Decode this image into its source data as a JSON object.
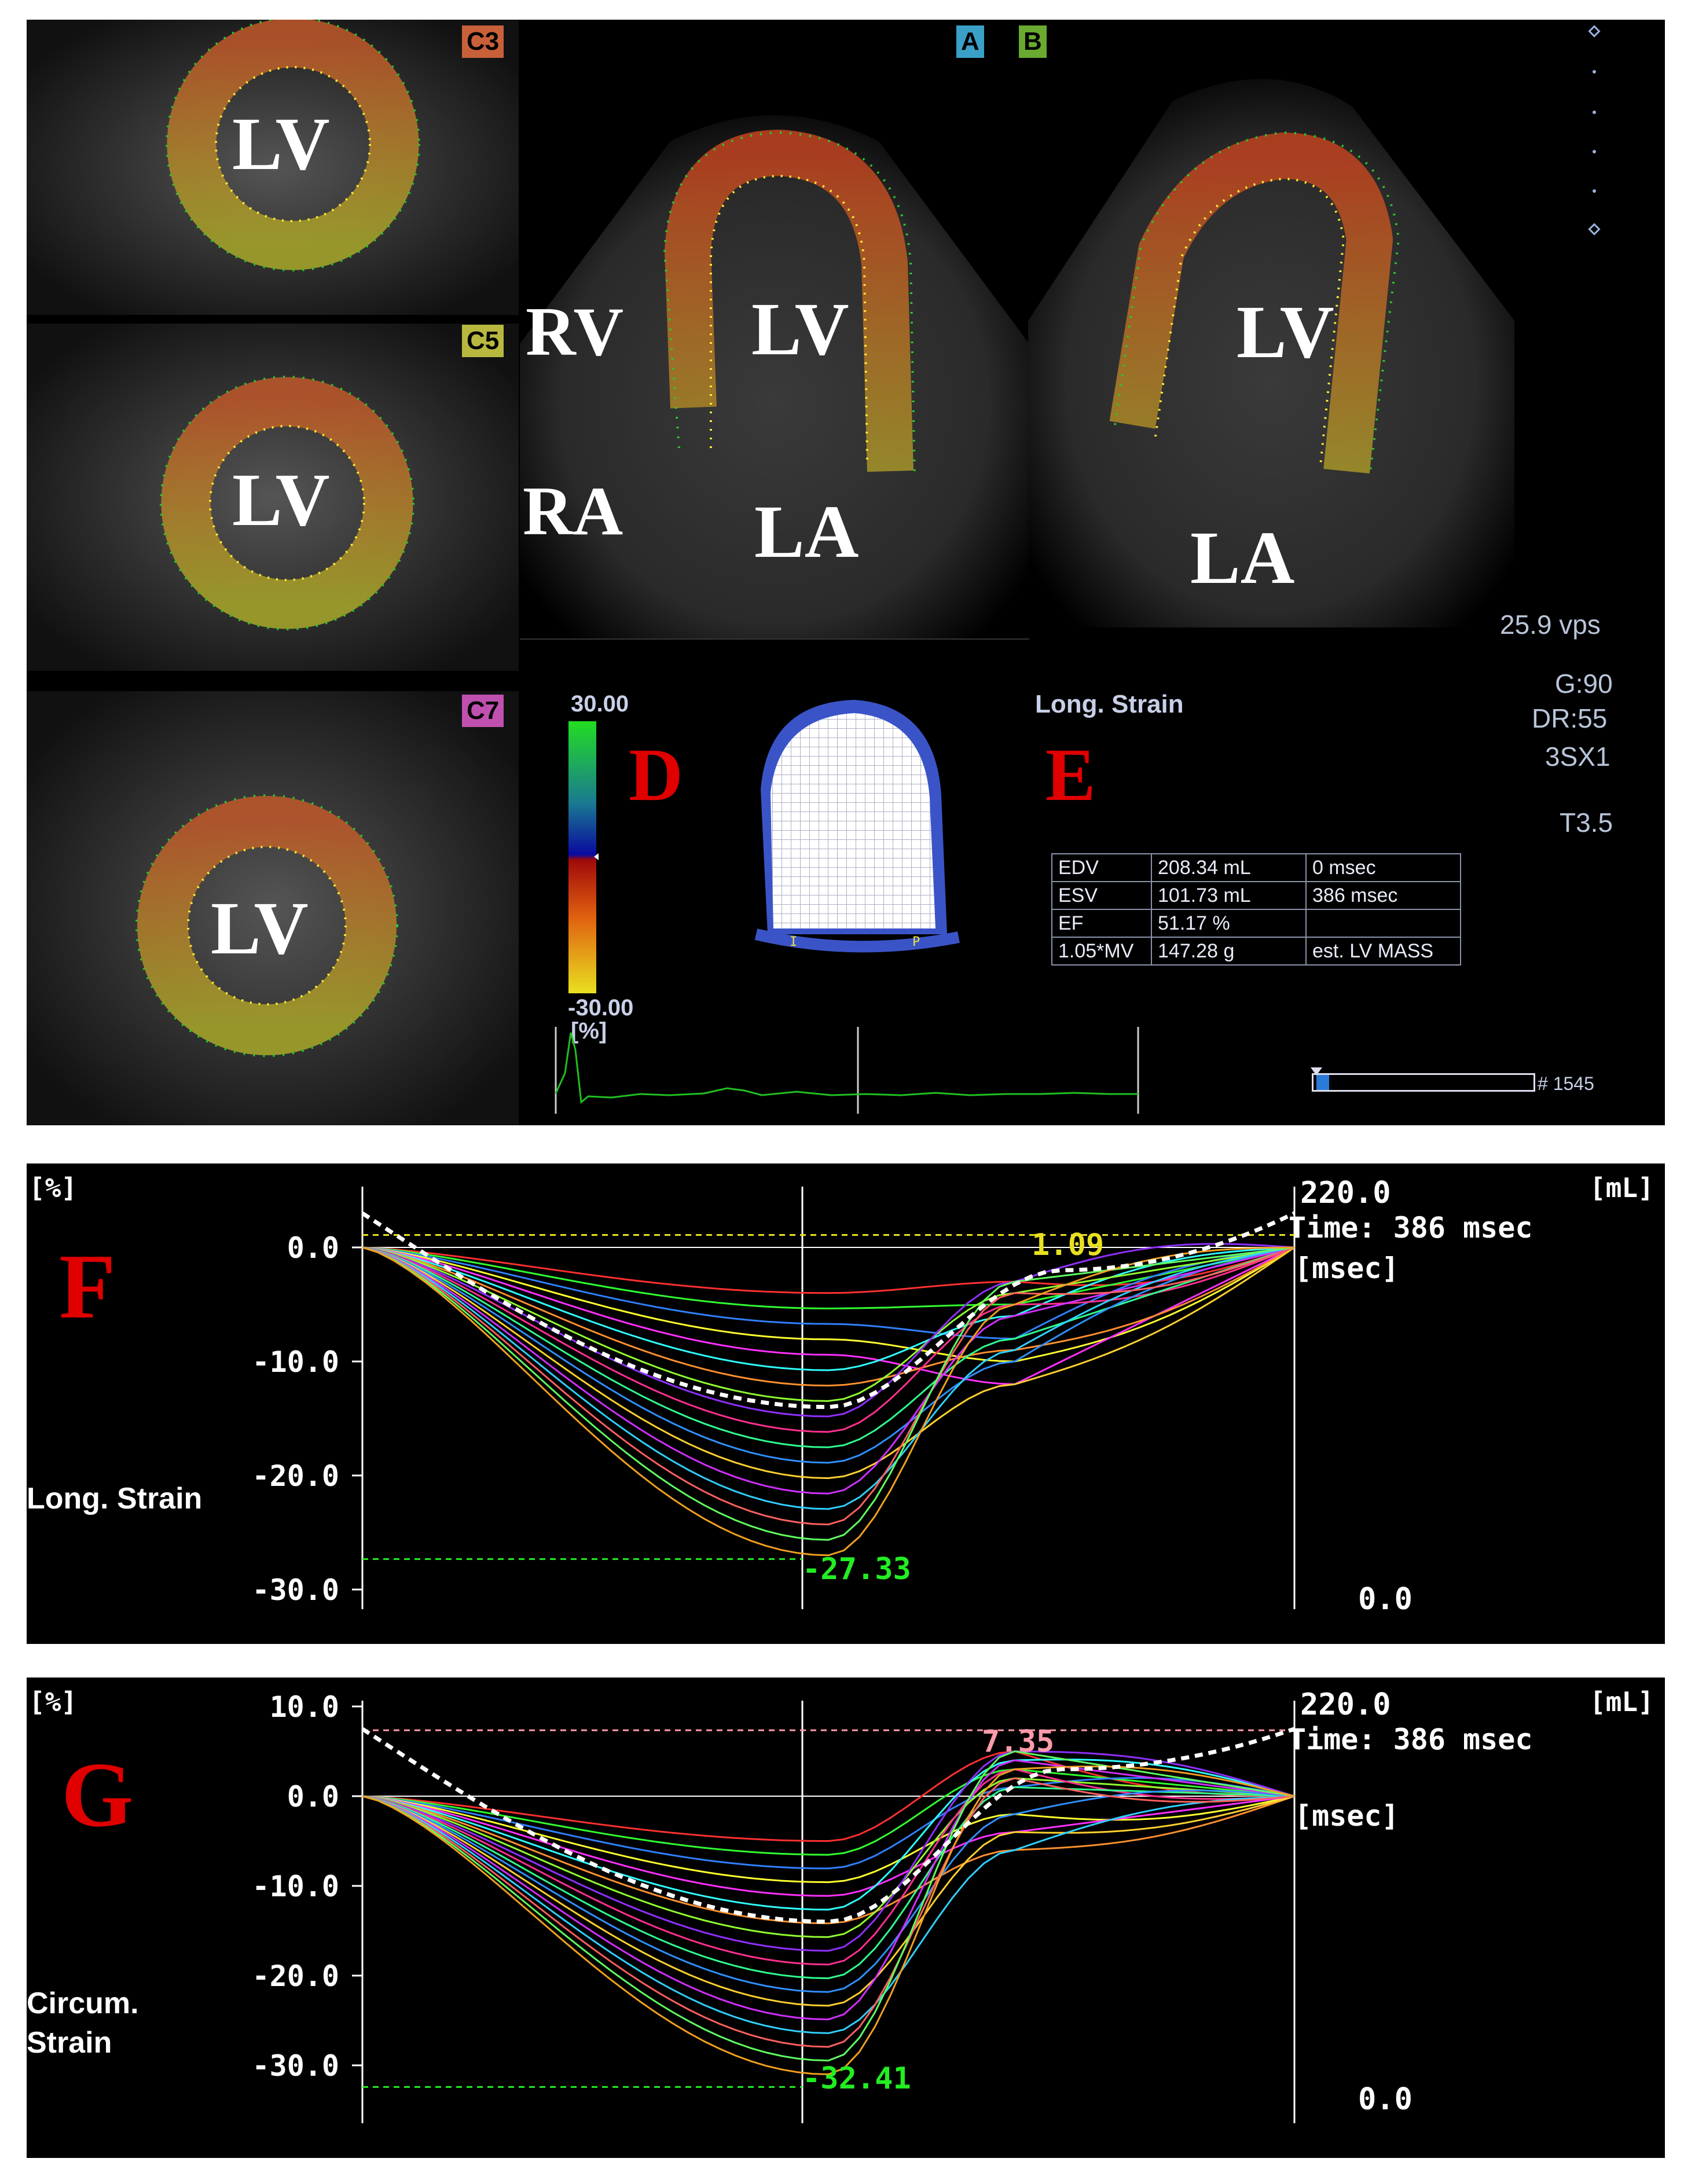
{
  "viewer": {
    "views": {
      "sax_1": {
        "badge": "C3",
        "label": "LV",
        "badge_color": "#c8603a"
      },
      "sax_2": {
        "badge": "C5",
        "label": "LV",
        "badge_color": "#b8b840"
      },
      "sax_3": {
        "badge": "C7",
        "label": "LV",
        "badge_color": "#c050b0"
      },
      "apical_a": {
        "badge": "A",
        "badge_color": "#3aa0c8",
        "labels": {
          "rv": "RV",
          "lv": "LV",
          "ra": "RA",
          "la": "LA"
        }
      },
      "apical_b": {
        "badge": "B",
        "badge_color": "#6aaa30",
        "labels": {
          "lv": "LV",
          "la": "LA"
        }
      }
    },
    "info": {
      "vps": "25.9 vps",
      "gain": "G:90",
      "dr": "DR:55",
      "probe": "3SX1",
      "t": "T3.5"
    },
    "colorbar": {
      "max": "30.00",
      "min": "-30.00",
      "unit": "[%]"
    },
    "panel_letters": {
      "d": "D",
      "e": "E"
    },
    "strain_title": "Long. Strain",
    "metrics": [
      [
        "EDV",
        "208.34 mL",
        "0 msec"
      ],
      [
        "ESV",
        "101.73 mL",
        "386 msec"
      ],
      [
        "EF",
        "51.17 %",
        ""
      ],
      [
        "1.05*MV",
        "147.28 g",
        "est. LV MASS"
      ]
    ],
    "frame_number": "# 1545",
    "mesh_markers": {
      "left": "I",
      "right": "P"
    }
  },
  "panel_f": {
    "letter": "F",
    "unit_left": "[%]",
    "unit_right": "[mL]",
    "y_ticks": [
      "0.0",
      "-10.0",
      "-20.0",
      "-30.0"
    ],
    "right_top": "220.0",
    "right_bottom": "0.0",
    "time_label": "Time: 386 msec",
    "msec_label": "[msec]",
    "series_label": "Long. Strain",
    "peak_value": "1.09",
    "min_value": "-27.33"
  },
  "panel_g": {
    "letter": "G",
    "unit_left": "[%]",
    "unit_right": "[mL]",
    "y_ticks": [
      "10.0",
      "0.0",
      "-10.0",
      "-20.0",
      "-30.0"
    ],
    "right_top": "220.0",
    "right_bottom": "0.0",
    "time_label": "Time: 386 msec",
    "msec_label": "[msec]",
    "series_label_1": "Circum.",
    "series_label_2": "Strain",
    "peak_value": "7.35",
    "min_value": "-32.41"
  },
  "chart_data": [
    {
      "type": "line",
      "ylabel": "[%]",
      "ylim": [
        -30,
        3
      ],
      "y_ticks": [
        0,
        -10,
        -20,
        -30
      ],
      "x_label": "[msec]",
      "x_marker_msec": 386,
      "series": [
        {
          "name": "Long. Strain",
          "min": -27.33,
          "max": 1.09
        }
      ]
    },
    {
      "type": "line",
      "ylabel": "[%]",
      "ylim": [
        -33,
        10
      ],
      "y_ticks": [
        10,
        0,
        -10,
        -20,
        -30
      ],
      "x_label": "[msec]",
      "x_marker_msec": 386,
      "series": [
        {
          "name": "Circum. Strain",
          "min": -32.41,
          "max": 7.35
        }
      ]
    }
  ]
}
